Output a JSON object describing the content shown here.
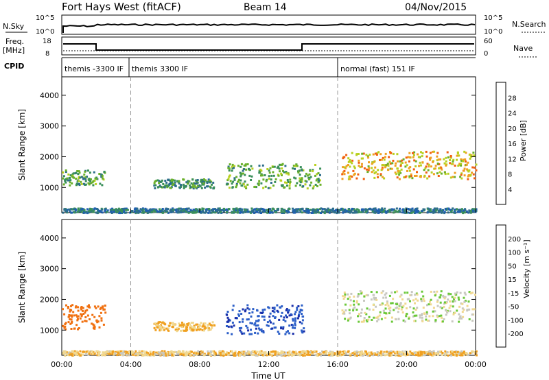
{
  "header": {
    "station": "Fort Hays West (fitACF)",
    "beam": "Beam 14",
    "date": "04/Nov/2015"
  },
  "labels": {
    "nsky": "N.Sky",
    "nsearch": "N.Search",
    "freq": "Freq.",
    "mhz": "[MHz]",
    "nave": "Nave",
    "cpid": "CPID",
    "nsky_tick_top": "10^5",
    "nsky_tick_bottom": "10^0",
    "freq_tick_top": "18",
    "freq_tick_bottom": "8",
    "nave_tick_top": "60",
    "nave_tick_bottom": "0"
  },
  "cpid_segments": [
    {
      "label": "themis -3300 IF",
      "start_hour": 0
    },
    {
      "label": "themis 3300 IF",
      "start_hour": 3.9
    },
    {
      "label": "normal (fast) 151 IF",
      "start_hour": 16
    }
  ],
  "chart_data": [
    {
      "type": "heatmap",
      "name": "power",
      "ylabel": "Slant Range [km]",
      "xlabel": "",
      "yticks": [
        "1000",
        "2000",
        "3000",
        "4000"
      ],
      "ylim": [
        180,
        4600
      ],
      "xlim_hours": [
        0,
        24
      ],
      "colorbar": {
        "label": "Power [dB]",
        "ticks": [
          "4",
          "8",
          "12",
          "16",
          "20",
          "24",
          "28"
        ],
        "range": [
          0,
          32
        ],
        "colors": [
          "#0033ff",
          "#1f5fb0",
          "#2e6e8a",
          "#3a8f5a",
          "#6ab02a",
          "#b8d020",
          "#f0a020",
          "#f06010",
          "#e82010"
        ]
      },
      "regions": [
        {
          "x0": 0,
          "x1": 2.5,
          "y0": 1100,
          "y1": 1600,
          "value": 14
        },
        {
          "x0": 5.3,
          "x1": 8.8,
          "y0": 1000,
          "y1": 1300,
          "value": 12
        },
        {
          "x0": 9.5,
          "x1": 15.0,
          "y0": 1000,
          "y1": 1800,
          "value": 15
        },
        {
          "x0": 16.2,
          "x1": 24,
          "y0": 1300,
          "y1": 2200,
          "value": 22
        },
        {
          "x0": 0,
          "x1": 24,
          "y0": 200,
          "y1": 350,
          "value": 9
        }
      ]
    },
    {
      "type": "heatmap",
      "name": "velocity",
      "ylabel": "Slant Range [km]",
      "xlabel": "Time UT",
      "yticks": [
        "1000",
        "2000",
        "3000",
        "4000"
      ],
      "ylim": [
        180,
        4600
      ],
      "xticks": [
        "00:00",
        "04:00",
        "08:00",
        "12:00",
        "16:00",
        "20:00",
        "00:00"
      ],
      "xlim_hours": [
        0,
        24
      ],
      "colorbar": {
        "label": "Velocity [m s⁻¹]",
        "ticks": [
          "200",
          "100",
          "50",
          "15",
          "-15",
          "-50",
          "-100",
          "-200"
        ],
        "colors": [
          "#1a2faa",
          "#2c5fc8",
          "#3a9a3a",
          "#6ac838",
          "#c8c8c0",
          "#f0d890",
          "#f0a020",
          "#f07010",
          "#e82010"
        ]
      },
      "regions": [
        {
          "x0": 0,
          "x1": 2.5,
          "y0": 1050,
          "y1": 1850,
          "value": -150
        },
        {
          "x0": 5.3,
          "x1": 8.8,
          "y0": 1000,
          "y1": 1300,
          "value": -60
        },
        {
          "x0": 9.5,
          "x1": 14.0,
          "y0": 900,
          "y1": 1850,
          "value": 180
        },
        {
          "x0": 16.2,
          "x1": 24,
          "y0": 1300,
          "y1": 2300,
          "value": 0
        },
        {
          "x0": 0,
          "x1": 24,
          "y0": 200,
          "y1": 350,
          "value": -40
        }
      ]
    }
  ]
}
